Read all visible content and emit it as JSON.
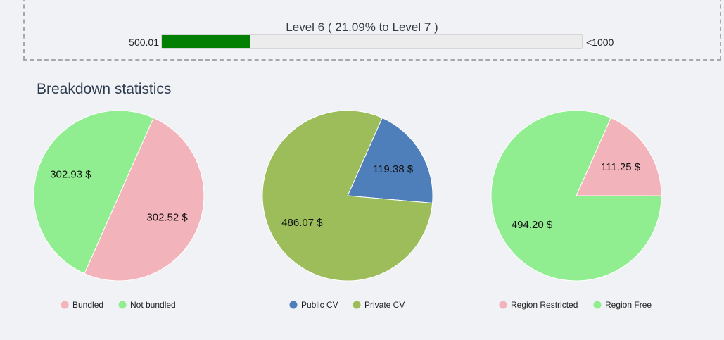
{
  "level": {
    "title": "Level 6 ( 21.09% to Level 7 )",
    "min_label": "500.01",
    "max_label": "<1000",
    "progress_percent": 21.09,
    "bar_color": "#038004"
  },
  "section_title": "Breakdown statistics",
  "chart_data": [
    {
      "type": "pie",
      "slices": [
        {
          "name": "Bundled",
          "value": 302.52,
          "label": "302.52 $",
          "color": "#f2b3ba"
        },
        {
          "name": "Not bundled",
          "value": 302.93,
          "label": "302.93 $",
          "color": "#90ee90"
        }
      ],
      "legend_placement": "bottom"
    },
    {
      "type": "pie",
      "slices": [
        {
          "name": "Public CV",
          "value": 119.38,
          "label": "119.38 $",
          "color": "#4f7fba"
        },
        {
          "name": "Private CV",
          "value": 486.07,
          "label": "486.07 $",
          "color": "#9cbd5a"
        }
      ],
      "legend_placement": "bottom"
    },
    {
      "type": "pie",
      "slices": [
        {
          "name": "Region Restricted",
          "value": 111.25,
          "label": "111.25 $",
          "color": "#f2b3ba"
        },
        {
          "name": "Region Free",
          "value": 494.2,
          "label": "494.20 $",
          "color": "#90ee90"
        }
      ],
      "legend_placement": "bottom"
    }
  ]
}
